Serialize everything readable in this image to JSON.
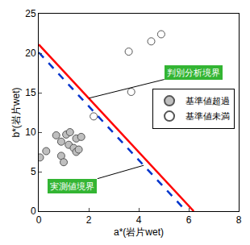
{
  "chart_data": {
    "type": "scatter",
    "x_label": "a*(岩片wet)",
    "y_label": "b*(岩片wet)",
    "xlim": [
      0,
      8
    ],
    "xticks": [
      0,
      2,
      4,
      6,
      8
    ],
    "ylim": [
      0,
      25
    ],
    "yticks": [
      0,
      5,
      10,
      15,
      20,
      25
    ],
    "grid": false,
    "legend": "right",
    "series": [
      {
        "name": "基準値超過",
        "type": "scatter",
        "marker": "circle",
        "color": "#bfbfbf",
        "x": [
          0.05,
          0.3,
          0.7,
          0.9,
          0.9,
          1.0,
          1.1,
          1.2,
          1.25,
          1.4,
          1.5,
          1.5,
          1.6,
          1.7
        ],
        "values": [
          6.8,
          7.6,
          9.6,
          8.8,
          7.0,
          6.2,
          9.7,
          8.4,
          10.0,
          8.0,
          9.2,
          7.5,
          7.8,
          9.4
        ]
      },
      {
        "name": "基準値未満",
        "type": "scatter",
        "marker": "circle",
        "color": "#ffffff",
        "x": [
          2.2,
          3.6,
          3.7,
          4.5,
          4.9
        ],
        "values": [
          12.0,
          20.2,
          15.1,
          21.5,
          22.4
        ]
      },
      {
        "name": "判別分析境界",
        "type": "line",
        "line_style": "solid",
        "color": "#ff0000",
        "x": [
          0,
          6.2
        ],
        "values": [
          21.1,
          0
        ]
      },
      {
        "name": "実測値境界",
        "type": "line",
        "line_style": "dashed",
        "color": "#0033cc",
        "x": [
          0,
          5.9
        ],
        "values": [
          20.1,
          0
        ]
      }
    ]
  }
}
